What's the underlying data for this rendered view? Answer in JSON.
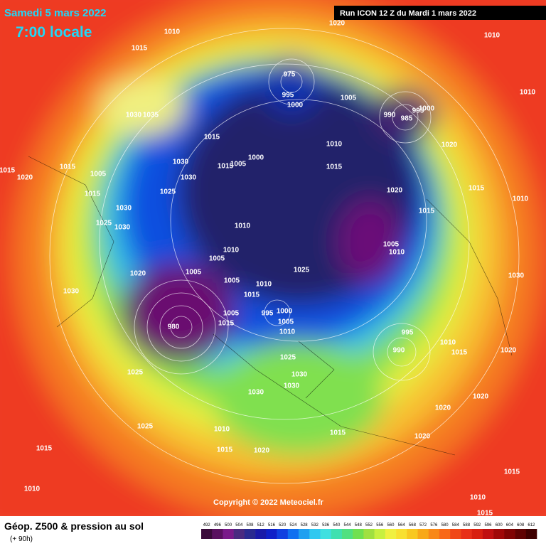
{
  "header": {
    "date": "Samedi 5 mars 2022",
    "time": "7:00 locale",
    "run": "Run ICON 12 Z du Mardi 1 mars 2022"
  },
  "copyright": "Copyright © 2022 Meteociel.fr",
  "footer": {
    "title": "Géop. Z500 & pression au sol",
    "lead": "(+ 90h)"
  },
  "legend": {
    "values": [
      492,
      496,
      500,
      504,
      508,
      512,
      516,
      520,
      524,
      528,
      532,
      536,
      540,
      544,
      548,
      552,
      556,
      560,
      564,
      568,
      572,
      576,
      580,
      584,
      588,
      592,
      596,
      600,
      604,
      608,
      612
    ],
    "colors": [
      "#3a0a3a",
      "#5a1060",
      "#7a1a8a",
      "#4a2a80",
      "#2a2a90",
      "#1a1aa8",
      "#1020c8",
      "#1040e0",
      "#1070f0",
      "#20a0f0",
      "#30c8f0",
      "#40e0e0",
      "#40e0b0",
      "#50e080",
      "#70e050",
      "#a0e040",
      "#c8f040",
      "#f0f040",
      "#f8e030",
      "#f8c820",
      "#f8a818",
      "#f88818",
      "#f86818",
      "#f04818",
      "#e83018",
      "#d82010",
      "#c01010",
      "#a00808",
      "#800404",
      "#600202",
      "#400000"
    ]
  },
  "isobar_labels": [
    "975",
    "995",
    "1000",
    "1005",
    "990",
    "985",
    "995",
    "1000",
    "1010",
    "1020",
    "1010",
    "1015",
    "1035",
    "1030",
    "1015",
    "1010",
    "1015",
    "1000",
    "1005",
    "1015",
    "1030",
    "1030",
    "1025",
    "1005",
    "1015",
    "1020",
    "1015",
    "1015",
    "1025",
    "1030",
    "1030",
    "1020",
    "1015",
    "1010",
    "1010",
    "1005",
    "1005",
    "1005",
    "1015",
    "1010",
    "1020",
    "995",
    "1000",
    "1005",
    "1010",
    "1025",
    "1005",
    "1010",
    "1020",
    "1010",
    "1015",
    "1010",
    "1030",
    "1020",
    "995",
    "990",
    "1010",
    "1015",
    "1025",
    "1030",
    "1030",
    "1030",
    "1025",
    "1025",
    "1015",
    "1010",
    "1010",
    "1015",
    "1020",
    "1015",
    "1020",
    "1020",
    "1015",
    "1010",
    "1015",
    "1020",
    "1030",
    "980",
    "1005",
    "1015"
  ]
}
